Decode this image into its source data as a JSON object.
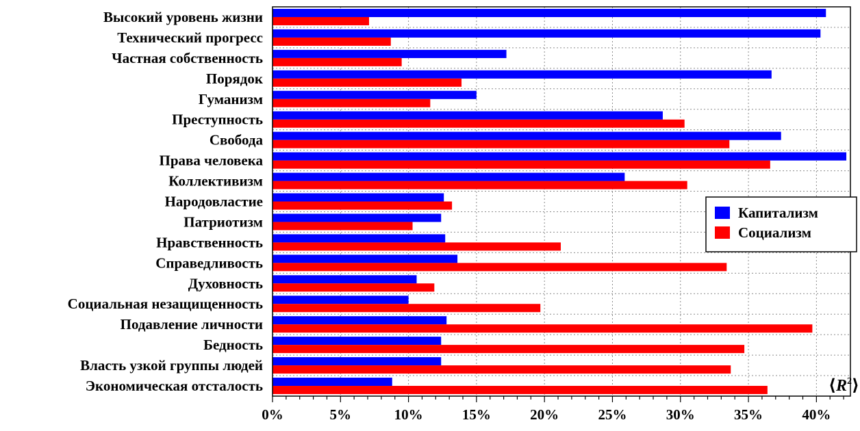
{
  "chart_data": {
    "type": "bar",
    "orientation": "horizontal",
    "categories": [
      "Высокий уровень жизни",
      "Технический прогресс",
      "Частная собственность",
      "Порядок",
      "Гуманизм",
      "Преступность",
      "Свобода",
      "Права человека",
      "Коллективизм",
      "Народовластие",
      "Патриотизм",
      "Нравственность",
      "Справедливость",
      "Духовность",
      "Социальная незащищенность",
      "Подавление личности",
      "Бедность",
      "Власть узкой группы людей",
      "Экономическая отсталость"
    ],
    "series": [
      {
        "name": "Капитализм",
        "color": "#0000ff",
        "values": [
          40.7,
          40.3,
          17.2,
          36.7,
          15.0,
          28.7,
          37.4,
          42.2,
          25.9,
          12.6,
          12.4,
          12.7,
          13.6,
          10.6,
          10.0,
          12.8,
          12.4,
          12.4,
          8.8
        ]
      },
      {
        "name": "Социализм",
        "color": "#ff0000",
        "values": [
          7.1,
          8.7,
          9.5,
          13.9,
          11.6,
          30.3,
          33.6,
          36.6,
          30.5,
          13.2,
          10.3,
          21.2,
          33.4,
          11.9,
          19.7,
          39.7,
          34.7,
          33.7,
          36.4
        ]
      }
    ],
    "xlim": [
      0,
      42.5
    ],
    "xticks": [
      0,
      5,
      10,
      15,
      20,
      25,
      30,
      35,
      40
    ],
    "xtick_labels": [
      "0%",
      "5%",
      "10%",
      "15%",
      "20%",
      "25%",
      "30%",
      "35%",
      "40%"
    ],
    "xlabel": "",
    "ylabel": "",
    "title": "",
    "annotation_parts": [
      "⟨",
      "R",
      "2",
      "⟩"
    ],
    "grid": true,
    "legend_position": "right"
  }
}
